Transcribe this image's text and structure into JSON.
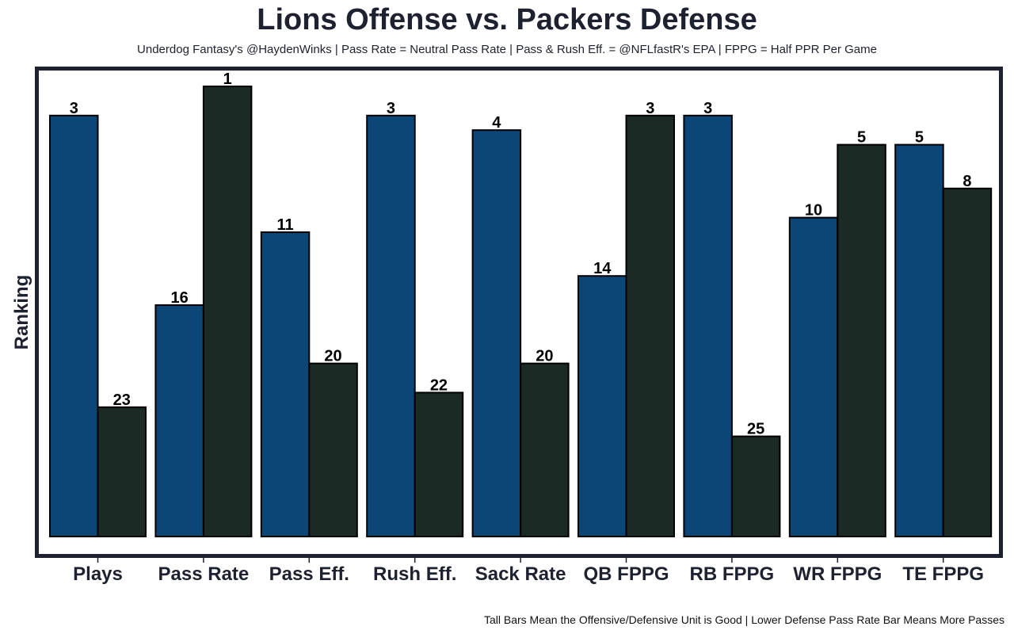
{
  "chart_data": {
    "type": "bar",
    "title": "Lions Offense vs. Packers Defense",
    "subtitle": "Underdog Fantasy's @HaydenWinks | Pass Rate = Neutral Pass Rate | Pass & Rush Eff. = @NFLfastR's EPA | FPPG = Half PPR Per Game",
    "caption": "Tall Bars Mean the Offensive/Defensive Unit is Good | Lower Defense Pass Rate Bar Means More Passes",
    "xlabel": "",
    "ylabel": "Ranking",
    "categories": [
      "Plays",
      "Pass Rate",
      "Pass Eff.",
      "Rush Eff.",
      "Sack Rate",
      "QB FPPG",
      "RB FPPG",
      "WR FPPG",
      "TE FPPG"
    ],
    "series": [
      {
        "values": [
          3,
          16,
          11,
          3,
          4,
          14,
          3,
          10,
          5
        ],
        "color": "#0b4677"
      },
      {
        "values": [
          23,
          1,
          20,
          22,
          20,
          3,
          25,
          5,
          8
        ],
        "color": "#1b2a24"
      }
    ],
    "y_axis_note": "taller bar = better (lower) ranking",
    "grid": false,
    "legend": "none"
  }
}
